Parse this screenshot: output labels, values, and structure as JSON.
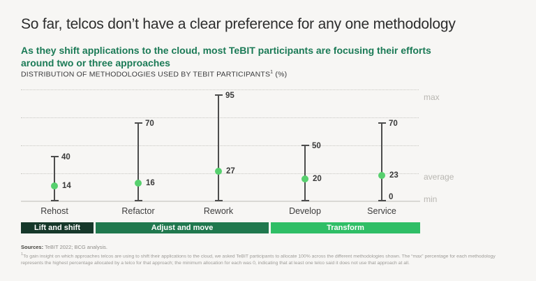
{
  "page": {
    "title": "So far, telcos don’t have a clear preference for any one methodology",
    "subtitle_line1": "As they shift applications to the cloud, most TeBIT participants are focusing their efforts",
    "subtitle_line2": "around two or three approaches",
    "kicker": "DISTRIBUTION OF METHODOLOGIES USED BY TEBIT PARTICIPANTS",
    "kicker_sup": "1",
    "kicker_unit": " (%)"
  },
  "chart_data": {
    "type": "scatter",
    "subtype": "range-dumbbell",
    "title": "Distribution of methodologies used by TeBIT participants (%)",
    "categories": [
      "Rehost",
      "Refactor",
      "Rework",
      "Develop",
      "Service"
    ],
    "series": [
      {
        "name": "max",
        "values": [
          40,
          70,
          95,
          50,
          70
        ]
      },
      {
        "name": "average",
        "values": [
          14,
          16,
          27,
          20,
          23
        ]
      },
      {
        "name": "min",
        "values": [
          0,
          0,
          0,
          0,
          0
        ]
      }
    ],
    "ylim": [
      0,
      100
    ],
    "gridlines": [
      25,
      50,
      75,
      100
    ],
    "grid": "dotted",
    "legend_position": "right",
    "right_labels": {
      "max": "max",
      "average": "average",
      "min": "min"
    },
    "shown_min_label": "0"
  },
  "groups": [
    {
      "label": "Lift and shift",
      "color": "#16382a"
    },
    {
      "label": "Adjust and move",
      "color": "#20784e"
    },
    {
      "label": "Transform",
      "color": "#2fbe66"
    }
  ],
  "footer": {
    "sources_label": "Sources:",
    "sources_text": " TeBIT 2022; BCG analysis.",
    "footnote_sup": "1",
    "footnote": "To gain insight on which approaches telcos are using to shift their applications to the cloud, we asked TeBIT participants to allocate 100% across the different methodologies shown. The “max” percentage for each methodology represents the highest percentage allocated by a telco for that approach; the minimum allocation for each was 0, indicating that at least one telco said it does not use that approach at all."
  },
  "colors": {
    "background": "#f7f6f4",
    "title_text": "#2c2c2c",
    "subtitle_green": "#1b7a56",
    "whisker_line": "#4d4d4d",
    "average_dot_green": "#57d06e",
    "gridline": "#c8c7c2",
    "muted_label": "#b8b6b1",
    "bar_dark_green": "#16382a",
    "bar_mid_green": "#20784e",
    "bar_bright_green": "#2fbe66"
  }
}
